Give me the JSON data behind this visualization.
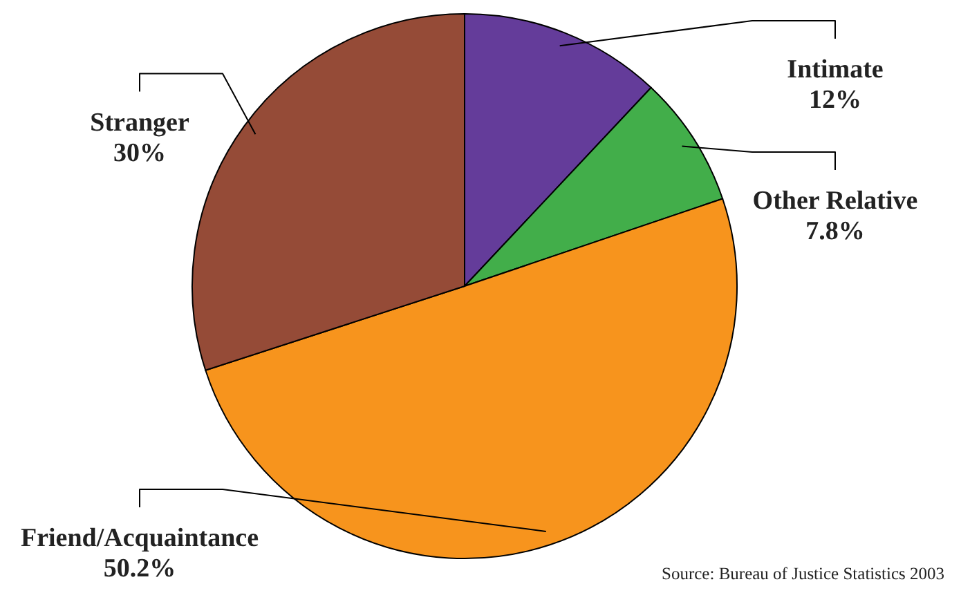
{
  "chart_data": {
    "type": "pie",
    "categories": [
      "Intimate",
      "Other Relative",
      "Friend/Acquaintance",
      "Stranger"
    ],
    "values": [
      12,
      7.8,
      50.2,
      30
    ],
    "colors": [
      "#643c9a",
      "#42ae4a",
      "#f7941d",
      "#954b37"
    ],
    "value_labels": [
      "12%",
      "7.8%",
      "50.2%",
      "30%"
    ],
    "annotations": [
      "Source: Bureau of Justice Statistics 2003"
    ]
  }
}
